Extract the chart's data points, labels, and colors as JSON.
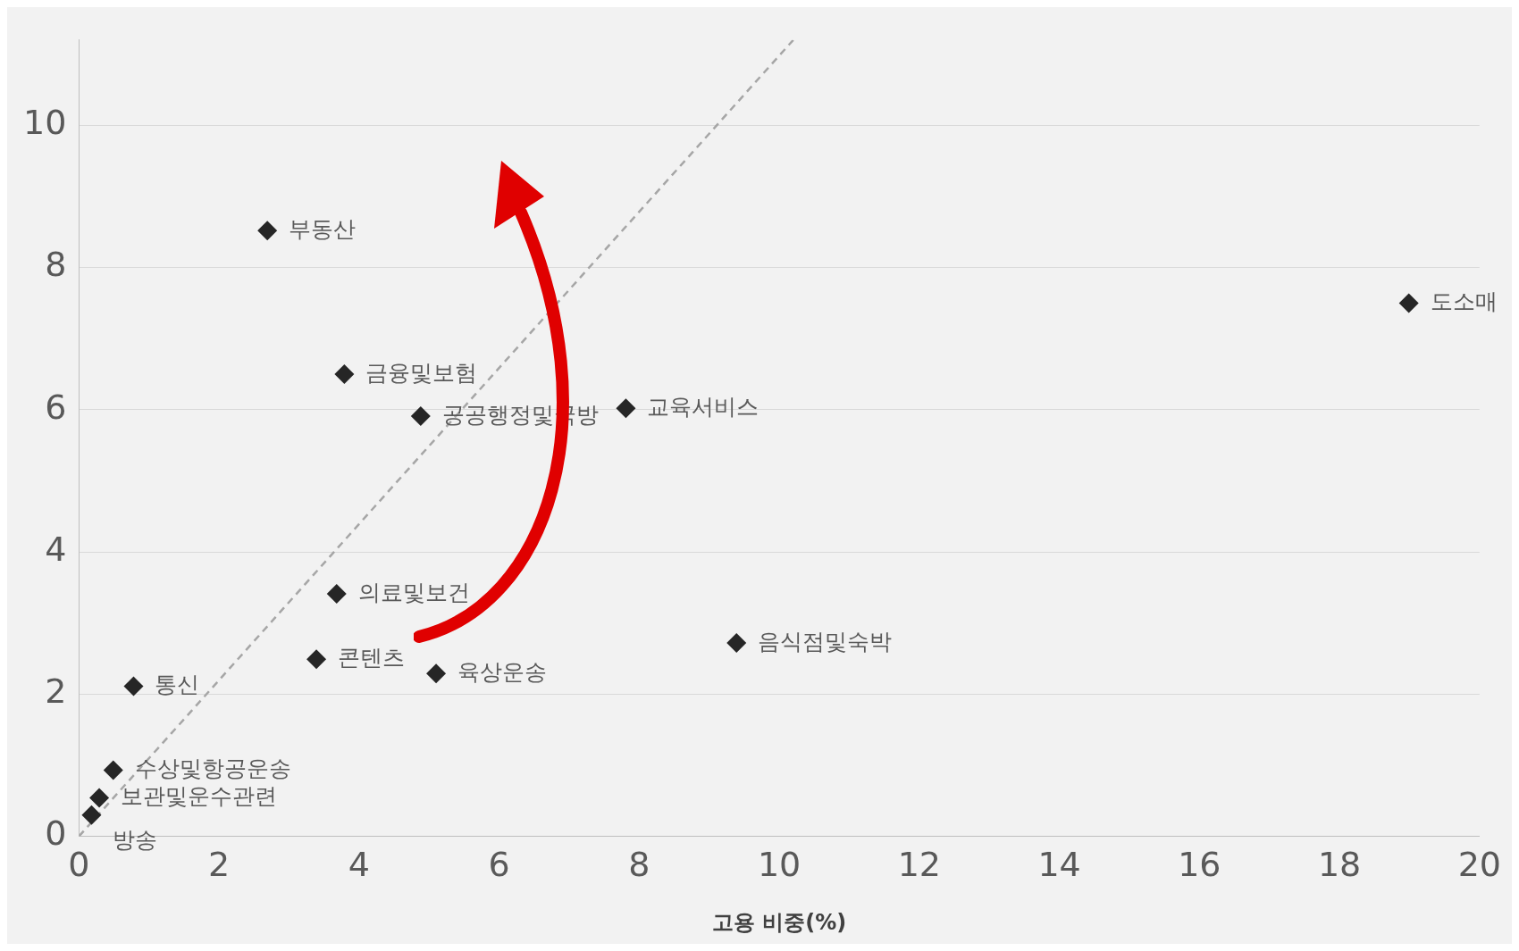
{
  "chart_data": {
    "type": "scatter",
    "xlabel": "고용 비중(%)",
    "xlim": [
      0,
      20
    ],
    "xticks": [
      0,
      2,
      4,
      6,
      8,
      10,
      12,
      14,
      16,
      18,
      20
    ],
    "ylim": [
      0,
      11.2
    ],
    "yticks": [
      0,
      2,
      4,
      6,
      8,
      10
    ],
    "grid": "y",
    "legend": false,
    "marker": "diamond",
    "series": [
      {
        "type": "scatter",
        "color": "#262626",
        "x": [
          2.69,
          18.99,
          3.79,
          4.88,
          7.81,
          3.68,
          3.39,
          5.1,
          9.39,
          0.78,
          0.49,
          0.29,
          0.18
        ],
        "values": [
          8.52,
          7.5,
          6.5,
          5.91,
          6.02,
          3.41,
          2.49,
          2.29,
          2.72,
          2.11,
          0.93,
          0.54,
          0.3
        ]
      },
      {
        "type": "line",
        "color": "#a6a6a6",
        "line_style": "dashed",
        "marker": "none",
        "x": [
          0,
          10.2
        ],
        "values": [
          0,
          11.2
        ]
      }
    ],
    "annotations": [
      {
        "text": "부동산",
        "x": 2.69,
        "y": 8.52
      },
      {
        "text": "도소매",
        "x": 18.99,
        "y": 7.5
      },
      {
        "text": "금융및보험",
        "x": 3.79,
        "y": 6.5
      },
      {
        "text": "공공행정및국방",
        "x": 4.88,
        "y": 5.91
      },
      {
        "text": "교육서비스",
        "x": 7.81,
        "y": 6.02
      },
      {
        "text": "의료및보건",
        "x": 3.68,
        "y": 3.41
      },
      {
        "text": "콘텐츠",
        "x": 3.39,
        "y": 2.49
      },
      {
        "text": "육상운송",
        "x": 5.1,
        "y": 2.29
      },
      {
        "text": "음식점및숙박",
        "x": 9.39,
        "y": 2.72
      },
      {
        "text": "통신",
        "x": 0.78,
        "y": 2.11
      },
      {
        "text": "수상및항공운송",
        "x": 0.49,
        "y": 0.93
      },
      {
        "text": "보관및운수관련",
        "x": 0.29,
        "y": 0.54
      },
      {
        "text": "방송",
        "x": 0.18,
        "y": 0.3
      }
    ]
  }
}
